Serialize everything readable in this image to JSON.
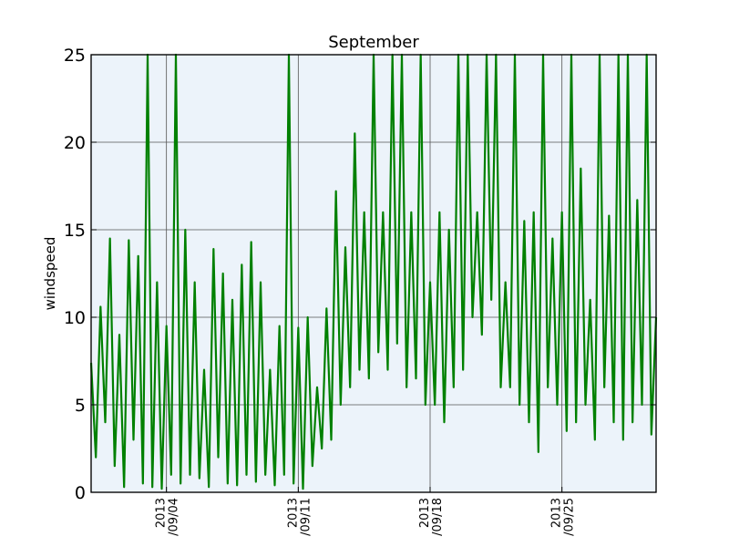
{
  "chart_data": {
    "type": "line",
    "title": "September",
    "xlabel": "",
    "ylabel": "windspeed",
    "xlim": [
      "2013-08-31",
      "2013-09-30"
    ],
    "ylim": [
      0,
      25
    ],
    "yticks": [
      0,
      5,
      10,
      15,
      20,
      25
    ],
    "xticks": [
      {
        "date": "2013-09-04",
        "label": [
          "2013",
          "/09/04"
        ]
      },
      {
        "date": "2013-09-11",
        "label": [
          "2013",
          "/09/11"
        ]
      },
      {
        "date": "2013-09-18",
        "label": [
          "2013",
          "/09/18"
        ]
      },
      {
        "date": "2013-09-25",
        "label": [
          "2013",
          "/09/25"
        ]
      }
    ],
    "grid": true,
    "color": "#008000",
    "background": "#ecf3fa",
    "series": [
      {
        "x": [
          "2013-08-31T00:00",
          "2013-08-31T06:00",
          "2013-08-31T12:00",
          "2013-08-31T18:00",
          "2013-09-01T00:00",
          "2013-09-01T06:00",
          "2013-09-01T12:00",
          "2013-09-01T18:00",
          "2013-09-02T00:00",
          "2013-09-02T06:00",
          "2013-09-02T12:00",
          "2013-09-02T18:00",
          "2013-09-03T00:00",
          "2013-09-03T06:00",
          "2013-09-03T12:00",
          "2013-09-03T18:00",
          "2013-09-04T00:00",
          "2013-09-04T06:00",
          "2013-09-04T12:00",
          "2013-09-04T18:00",
          "2013-09-05T00:00",
          "2013-09-05T06:00",
          "2013-09-05T12:00",
          "2013-09-05T18:00",
          "2013-09-06T00:00",
          "2013-09-06T06:00",
          "2013-09-06T12:00",
          "2013-09-06T18:00",
          "2013-09-07T00:00",
          "2013-09-07T06:00",
          "2013-09-07T12:00",
          "2013-09-07T18:00",
          "2013-09-08T00:00",
          "2013-09-08T06:00",
          "2013-09-08T12:00",
          "2013-09-08T18:00",
          "2013-09-09T00:00",
          "2013-09-09T06:00",
          "2013-09-09T12:00",
          "2013-09-09T18:00",
          "2013-09-10T00:00",
          "2013-09-10T06:00",
          "2013-09-10T12:00",
          "2013-09-10T18:00",
          "2013-09-11T00:00",
          "2013-09-11T06:00",
          "2013-09-11T12:00",
          "2013-09-11T18:00",
          "2013-09-12T00:00",
          "2013-09-12T06:00",
          "2013-09-12T12:00",
          "2013-09-12T18:00",
          "2013-09-13T00:00",
          "2013-09-13T06:00",
          "2013-09-13T12:00",
          "2013-09-13T18:00",
          "2013-09-14T00:00",
          "2013-09-14T06:00",
          "2013-09-14T12:00",
          "2013-09-14T18:00",
          "2013-09-15T00:00",
          "2013-09-15T06:00",
          "2013-09-15T12:00",
          "2013-09-15T18:00",
          "2013-09-16T00:00",
          "2013-09-16T06:00",
          "2013-09-16T12:00",
          "2013-09-16T18:00",
          "2013-09-17T00:00",
          "2013-09-17T06:00",
          "2013-09-17T12:00",
          "2013-09-17T18:00",
          "2013-09-18T00:00",
          "2013-09-18T06:00",
          "2013-09-18T12:00",
          "2013-09-18T18:00",
          "2013-09-19T00:00",
          "2013-09-19T06:00",
          "2013-09-19T12:00",
          "2013-09-19T18:00",
          "2013-09-20T00:00",
          "2013-09-20T06:00",
          "2013-09-20T12:00",
          "2013-09-20T18:00",
          "2013-09-21T00:00",
          "2013-09-21T06:00",
          "2013-09-21T12:00",
          "2013-09-21T18:00",
          "2013-09-22T00:00",
          "2013-09-22T06:00",
          "2013-09-22T12:00",
          "2013-09-22T18:00",
          "2013-09-23T00:00",
          "2013-09-23T06:00",
          "2013-09-23T12:00",
          "2013-09-23T18:00",
          "2013-09-24T00:00",
          "2013-09-24T06:00",
          "2013-09-24T12:00",
          "2013-09-24T18:00",
          "2013-09-25T00:00",
          "2013-09-25T06:00",
          "2013-09-25T12:00",
          "2013-09-25T18:00",
          "2013-09-26T00:00",
          "2013-09-26T06:00",
          "2013-09-26T12:00",
          "2013-09-26T18:00",
          "2013-09-27T00:00",
          "2013-09-27T06:00",
          "2013-09-27T12:00",
          "2013-09-27T18:00",
          "2013-09-28T00:00",
          "2013-09-28T06:00",
          "2013-09-28T12:00",
          "2013-09-28T18:00",
          "2013-09-29T00:00",
          "2013-09-29T06:00",
          "2013-09-29T12:00",
          "2013-09-29T18:00",
          "2013-09-30T00:00"
        ],
        "values": [
          7.4,
          2.0,
          10.6,
          4.0,
          14.5,
          1.5,
          9.0,
          0.3,
          14.4,
          3.0,
          13.5,
          0.5,
          25.0,
          0.3,
          12.0,
          0.2,
          9.5,
          1.0,
          25.0,
          0.5,
          15.0,
          1.0,
          12.0,
          0.8,
          7.0,
          0.3,
          13.9,
          2.0,
          12.5,
          0.5,
          11.0,
          0.4,
          13.0,
          1.0,
          14.3,
          0.6,
          12.0,
          1.0,
          7.0,
          0.4,
          9.5,
          1.0,
          25.0,
          0.5,
          9.4,
          0.2,
          10.0,
          1.5,
          6.0,
          2.5,
          10.5,
          3.0,
          17.2,
          5.0,
          14.0,
          6.0,
          20.5,
          7.0,
          16.0,
          6.5,
          25.0,
          8.0,
          16.0,
          7.0,
          25.0,
          8.5,
          25.0,
          6.0,
          16.0,
          6.5,
          25.0,
          5.0,
          12.0,
          5.0,
          16.0,
          4.0,
          15.0,
          6.0,
          25.0,
          7.0,
          25.0,
          10.0,
          16.0,
          9.0,
          25.0,
          11.0,
          25.0,
          6.0,
          12.0,
          6.0,
          25.0,
          5.0,
          15.5,
          4.0,
          16.0,
          2.3,
          25.0,
          6.0,
          14.5,
          5.0,
          16.0,
          3.5,
          25.0,
          4.0,
          18.5,
          5.0,
          11.0,
          3.0,
          25.0,
          6.0,
          15.8,
          4.0,
          25.0,
          3.0,
          25.0,
          4.0,
          16.7,
          5.0,
          25.0,
          3.3,
          10.0
        ]
      }
    ]
  }
}
